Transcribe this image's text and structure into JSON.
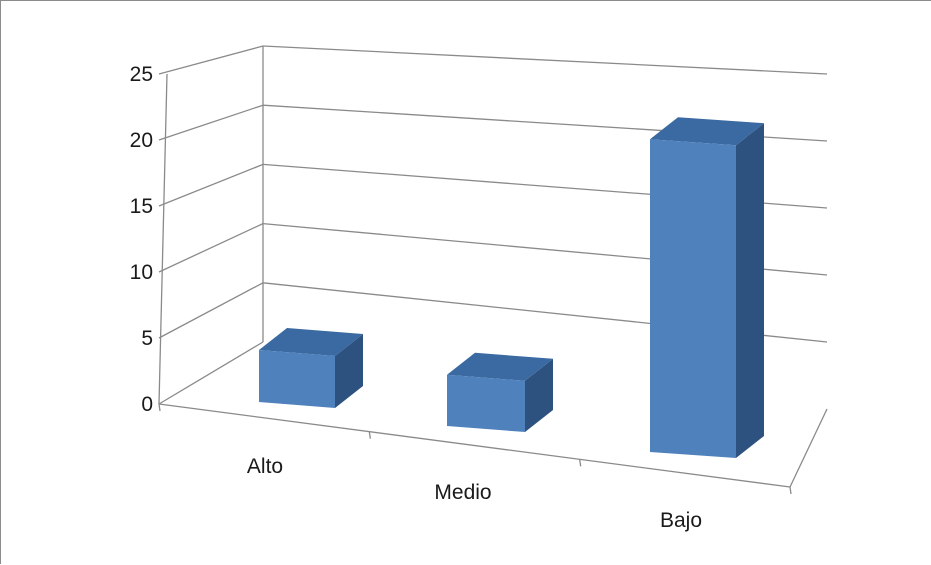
{
  "chart_data": {
    "type": "bar",
    "style": "3d-column",
    "categories": [
      "Alto",
      "Medio",
      "Bajo"
    ],
    "values": [
      4,
      4,
      23
    ],
    "ylim": [
      0,
      25
    ],
    "yticks": [
      0,
      5,
      10,
      15,
      20,
      25
    ],
    "ytick_labels": [
      "0",
      "5",
      "10",
      "15",
      "20",
      "25"
    ],
    "title": "",
    "xlabel": "",
    "ylabel": "",
    "grid": true,
    "legend": "none"
  },
  "colors": {
    "bar_front": "#4f81bd",
    "bar_top": "#3a6aa1",
    "bar_side": "#2e527f",
    "gridline": "#8a8a8a",
    "text": "#1a1a1a"
  }
}
